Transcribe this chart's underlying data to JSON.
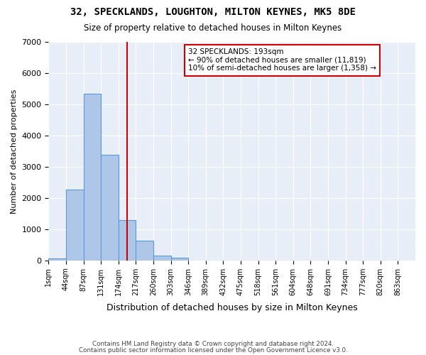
{
  "title": "32, SPECKLANDS, LOUGHTON, MILTON KEYNES, MK5 8DE",
  "subtitle": "Size of property relative to detached houses in Milton Keynes",
  "xlabel": "Distribution of detached houses by size in Milton Keynes",
  "ylabel": "Number of detached properties",
  "footnote1": "Contains HM Land Registry data © Crown copyright and database right 2024.",
  "footnote2": "Contains public sector information licensed under the Open Government Licence v3.0.",
  "bar_color": "#aec6e8",
  "bar_edge_color": "#5b9bd5",
  "vline_color": "#cc0000",
  "vline_x": 4.5,
  "annotation_lines": [
    "32 SPECKLANDS: 193sqm",
    "← 90% of detached houses are smaller (11,819)",
    "10% of semi-detached houses are larger (1,358) →"
  ],
  "annotation_box_color": "#ffffff",
  "annotation_box_edge": "#cc0000",
  "bin_labels": [
    "1sqm",
    "44sqm",
    "87sqm",
    "131sqm",
    "174sqm",
    "217sqm",
    "260sqm",
    "303sqm",
    "346sqm",
    "389sqm",
    "432sqm",
    "475sqm",
    "518sqm",
    "561sqm",
    "604sqm",
    "648sqm",
    "691sqm",
    "734sqm",
    "777sqm",
    "820sqm",
    "863sqm"
  ],
  "bar_values": [
    50,
    2270,
    5350,
    3380,
    1300,
    620,
    155,
    80,
    0,
    0,
    0,
    0,
    0,
    0,
    0,
    0,
    0,
    0,
    0,
    0
  ],
  "ylim": [
    0,
    7000
  ],
  "yticks": [
    0,
    1000,
    2000,
    3000,
    4000,
    5000,
    6000,
    7000
  ],
  "background_color": "#e8eef8"
}
